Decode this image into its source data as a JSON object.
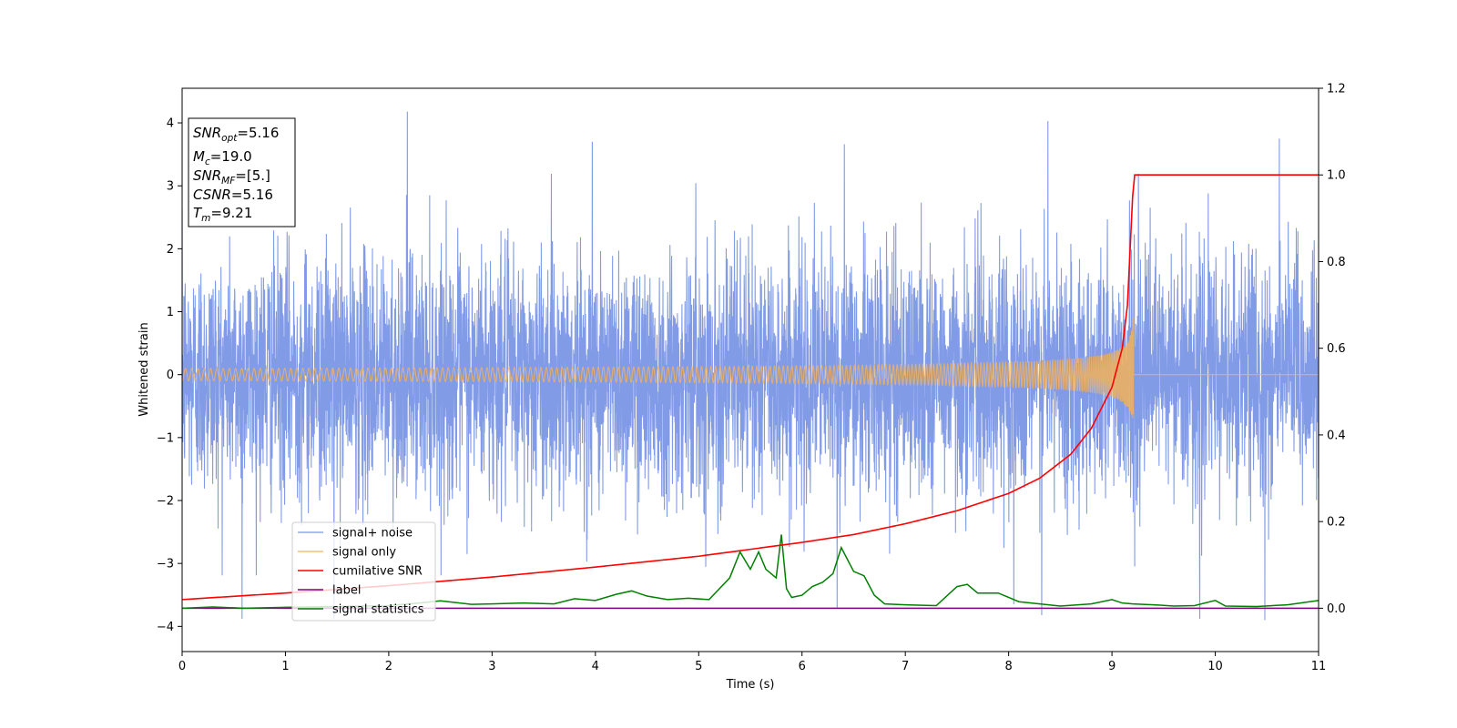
{
  "chart_data": {
    "type": "line",
    "title": "",
    "xlabel": "Time (s)",
    "ylabel": "Whitened strain",
    "xlim": [
      0,
      11
    ],
    "ylim": [
      -4.4,
      4.55
    ],
    "y2lim": [
      -0.1,
      1.2
    ],
    "xticks": [
      0,
      1,
      2,
      3,
      4,
      5,
      6,
      7,
      8,
      9,
      10,
      11
    ],
    "xtick_labels": [
      "0",
      "1",
      "2",
      "3",
      "4",
      "5",
      "6",
      "7",
      "8",
      "9",
      "10",
      "11"
    ],
    "yticks": [
      -4,
      -3,
      -2,
      -1,
      0,
      1,
      2,
      3,
      4
    ],
    "ytick_labels": [
      "−4",
      "−3",
      "−2",
      "−1",
      "0",
      "1",
      "2",
      "3",
      "4"
    ],
    "y2ticks": [
      0.0,
      0.2,
      0.4,
      0.6,
      0.8,
      1.0,
      1.2
    ],
    "y2tick_labels": [
      "0.0",
      "0.2",
      "0.4",
      "0.6",
      "0.8",
      "1.0",
      "1.2"
    ],
    "grid": false,
    "legend_position": "lower-left",
    "series": [
      {
        "name": "signal+ noise",
        "color": "#7b96e6",
        "axis": "left",
        "description_kind": "dense noise",
        "x_range": [
          0,
          11
        ],
        "typical_amplitude": 2.2,
        "peak_spikes": [
          {
            "x": 2.18,
            "y": 4.18
          },
          {
            "x": 0.58,
            "y": -3.88
          },
          {
            "x": 1.47,
            "y": -3.88
          },
          {
            "x": 10.48,
            "y": -3.9
          },
          {
            "x": 9.85,
            "y": -3.88
          },
          {
            "x": 8.32,
            "y": -3.82
          },
          {
            "x": 10.62,
            "y": 3.75
          },
          {
            "x": 3.97,
            "y": 3.7
          },
          {
            "x": 6.41,
            "y": 3.66
          },
          {
            "x": 8.38,
            "y": 4.03
          },
          {
            "x": 6.34,
            "y": -3.7
          },
          {
            "x": 8.05,
            "y": -3.65
          }
        ]
      },
      {
        "name": "signal only",
        "color": "#f2b25a",
        "axis": "left",
        "description_kind": "chirp",
        "merger_time": 9.21,
        "peak_amplitude": 1.0
      },
      {
        "name": "cumilative SNR",
        "color": "#ff0000",
        "axis": "right",
        "x": [
          0,
          1,
          2,
          3,
          4,
          5,
          6,
          6.5,
          7,
          7.5,
          8,
          8.3,
          8.6,
          8.8,
          9.0,
          9.1,
          9.15,
          9.2,
          9.22,
          11
        ],
        "values": [
          0.02,
          0.035,
          0.052,
          0.072,
          0.095,
          0.12,
          0.152,
          0.17,
          0.195,
          0.225,
          0.265,
          0.3,
          0.355,
          0.415,
          0.51,
          0.6,
          0.7,
          0.95,
          1.0,
          1.0
        ]
      },
      {
        "name": "label",
        "color": "#800080",
        "axis": "right",
        "x": [
          0,
          11
        ],
        "values": [
          0,
          0
        ]
      },
      {
        "name": "signal statistics",
        "color": "#008000",
        "axis": "right",
        "x": [
          0,
          0.3,
          0.6,
          1.0,
          1.5,
          2.0,
          2.3,
          2.5,
          2.8,
          3.0,
          3.3,
          3.6,
          3.8,
          4.0,
          4.2,
          4.35,
          4.5,
          4.7,
          4.9,
          5.1,
          5.3,
          5.4,
          5.5,
          5.58,
          5.65,
          5.75,
          5.8,
          5.85,
          5.9,
          6.0,
          6.1,
          6.2,
          6.3,
          6.38,
          6.5,
          6.6,
          6.7,
          6.8,
          7.0,
          7.3,
          7.5,
          7.6,
          7.7,
          7.9,
          8.1,
          8.3,
          8.5,
          8.8,
          9.0,
          9.1,
          9.2,
          9.4,
          9.6,
          9.8,
          10.0,
          10.1,
          10.4,
          10.7,
          11.0
        ],
        "values": [
          0.0,
          0.003,
          0.0,
          0.002,
          0.004,
          0.006,
          0.012,
          0.017,
          0.009,
          0.01,
          0.012,
          0.01,
          0.022,
          0.018,
          0.032,
          0.04,
          0.028,
          0.02,
          0.023,
          0.02,
          0.07,
          0.13,
          0.09,
          0.13,
          0.09,
          0.07,
          0.17,
          0.045,
          0.025,
          0.03,
          0.05,
          0.06,
          0.08,
          0.14,
          0.085,
          0.075,
          0.03,
          0.01,
          0.008,
          0.006,
          0.05,
          0.055,
          0.035,
          0.035,
          0.015,
          0.01,
          0.005,
          0.01,
          0.02,
          0.012,
          0.01,
          0.008,
          0.005,
          0.006,
          0.018,
          0.005,
          0.004,
          0.008,
          0.018
        ]
      }
    ],
    "annotations": [
      {
        "base": "SNR",
        "sub": "opt",
        "value": "=5.16"
      },
      {
        "base": "M",
        "sub": "c",
        "value": "=19.0"
      },
      {
        "base": "SNR",
        "sub": "MF",
        "value": "=[5.]"
      },
      {
        "base": "CSNR",
        "sub": "",
        "value": "=5.16"
      },
      {
        "base": "T",
        "sub": "m",
        "value": "=9.21"
      }
    ]
  }
}
